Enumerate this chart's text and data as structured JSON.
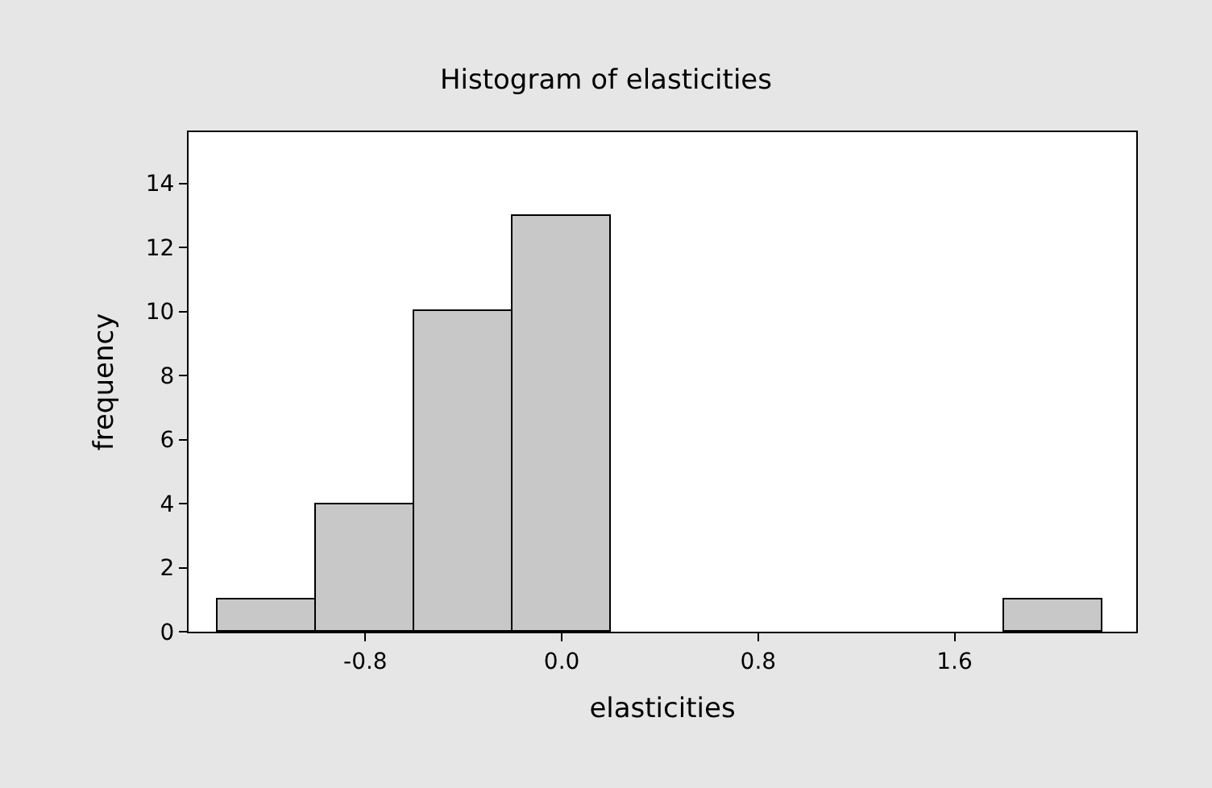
{
  "chart_data": {
    "type": "histogram",
    "title": "Histogram of elasticities",
    "xlabel": "elasticities",
    "ylabel": "frequency",
    "bins": [
      -1.4,
      -1.0,
      -0.6,
      -0.2,
      0.2,
      0.6,
      1.0,
      1.4,
      1.8,
      2.2
    ],
    "values": [
      1,
      4,
      10,
      13,
      0,
      0,
      0,
      0,
      1
    ],
    "color": "#c8c8c8",
    "grid": false,
    "xlim": [
      -1.52,
      2.34
    ],
    "xticks": [
      {
        "value": -0.8,
        "label": "-0.8"
      },
      {
        "value": 0.0,
        "label": "0.0"
      },
      {
        "value": 0.8,
        "label": "0.8"
      },
      {
        "value": 1.6,
        "label": "1.6"
      }
    ],
    "ylim": [
      0,
      15.6
    ],
    "yticks": [
      0,
      2,
      4,
      6,
      8,
      10,
      12,
      14
    ]
  }
}
